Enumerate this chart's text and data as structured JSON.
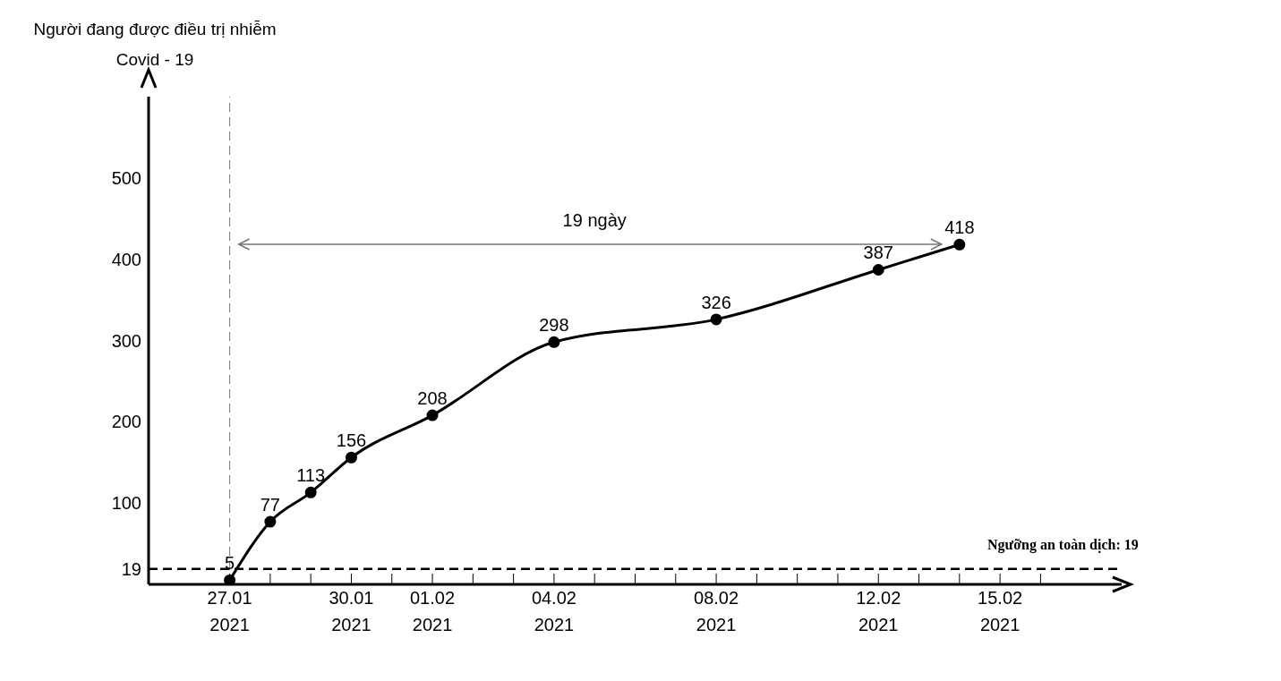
{
  "chart_data": {
    "type": "line",
    "ylabel": "Người đang được điều trị nhiễm Covid - 19",
    "x": [
      "2021-01-27",
      "2021-01-28",
      "2021-01-29",
      "2021-01-30",
      "2021-02-01",
      "2021-02-04",
      "2021-02-08",
      "2021-02-12",
      "2021-02-14"
    ],
    "values": [
      5,
      77,
      113,
      156,
      208,
      298,
      326,
      387,
      418
    ],
    "color": "#000000",
    "marker": "circle",
    "data_labels": true,
    "xlim": [
      "2021-01-25",
      "2021-02-18"
    ],
    "xticks": [
      {
        "value": "2021-01-27",
        "label": "27.01\n2021"
      },
      {
        "value": "2021-01-28",
        "label": null
      },
      {
        "value": "2021-01-29",
        "label": null
      },
      {
        "value": "2021-01-30",
        "label": "30.01\n2021"
      },
      {
        "value": "2021-01-31",
        "label": null
      },
      {
        "value": "2021-02-01",
        "label": "01.02\n2021"
      },
      {
        "value": "2021-02-02",
        "label": null
      },
      {
        "value": "2021-02-03",
        "label": null
      },
      {
        "value": "2021-02-04",
        "label": "04.02\n2021"
      },
      {
        "value": "2021-02-05",
        "label": null
      },
      {
        "value": "2021-02-06",
        "label": null
      },
      {
        "value": "2021-02-07",
        "label": null
      },
      {
        "value": "2021-02-08",
        "label": "08.02\n2021"
      },
      {
        "value": "2021-02-09",
        "label": null
      },
      {
        "value": "2021-02-10",
        "label": null
      },
      {
        "value": "2021-02-11",
        "label": null
      },
      {
        "value": "2021-02-12",
        "label": "12.02\n2021"
      },
      {
        "value": "2021-02-13",
        "label": null
      },
      {
        "value": "2021-02-14",
        "label": null
      },
      {
        "value": "2021-02-15",
        "label": "15.02\n2021"
      },
      {
        "value": "2021-02-16",
        "label": null
      }
    ],
    "ylim": [
      0,
      600
    ],
    "yticks": [
      19,
      100,
      200,
      300,
      400,
      500
    ],
    "ref_lines": [
      {
        "axis": "y",
        "value": 19,
        "label": "Ngưỡng an toàn dịch: 19",
        "color": "#000000",
        "line_style": "dashed"
      },
      {
        "axis": "x",
        "value": "2021-01-27",
        "color": "#777777",
        "line_style": "dashed"
      }
    ],
    "annotations": [
      "19 ngày"
    ]
  }
}
